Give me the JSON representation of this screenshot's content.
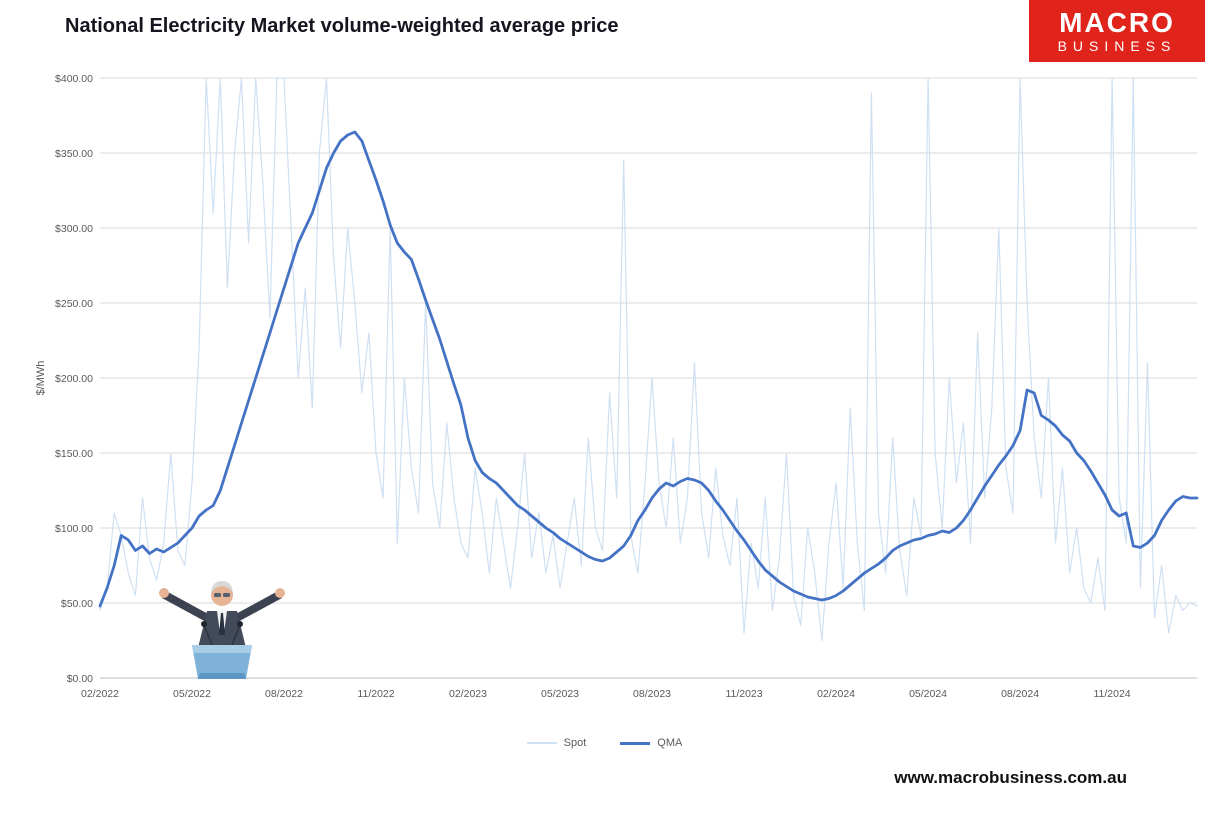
{
  "title": "National Electricity Market volume-weighted average price",
  "logo": {
    "line1": "MACRO",
    "line2": "BUSINESS",
    "bg_color": "#e0241c",
    "fg_color": "#ffffff"
  },
  "footer_url": "www.macrobusiness.com.au",
  "legend": {
    "spot_label": "Spot",
    "qma_label": "QMA"
  },
  "chart_data": {
    "type": "line",
    "title": "National Electricity Market volume-weighted average price",
    "xlabel": "",
    "ylabel": "$/MWh",
    "ylim": [
      0,
      400
    ],
    "ytick_step": 50,
    "ytick_labels": [
      "$0.00",
      "$50.00",
      "$100.00",
      "$150.00",
      "$200.00",
      "$250.00",
      "$300.00",
      "$350.00",
      "$400.00"
    ],
    "xtick_labels": [
      "02/2022",
      "05/2022",
      "08/2022",
      "11/2022",
      "02/2023",
      "05/2023",
      "08/2023",
      "11/2023",
      "02/2024",
      "05/2024",
      "08/2024",
      "11/2024"
    ],
    "xtick_indices": [
      0,
      13,
      26,
      39,
      52,
      65,
      78,
      91,
      104,
      117,
      130,
      143
    ],
    "n_points": 156,
    "grid": true,
    "legend_position": "bottom",
    "colors": {
      "grid": "#d9d9d9",
      "axis_text": "#595959",
      "spot": "#cfe0f2",
      "qma": "#4472c4"
    },
    "series": [
      {
        "name": "Spot",
        "color": "#cfe0f2",
        "width": 1.2,
        "values": [
          45,
          60,
          110,
          95,
          70,
          55,
          120,
          80,
          65,
          90,
          150,
          85,
          75,
          130,
          220,
          400,
          310,
          400,
          260,
          350,
          400,
          290,
          400,
          330,
          240,
          400,
          400,
          300,
          200,
          260,
          180,
          350,
          400,
          280,
          220,
          300,
          250,
          190,
          230,
          150,
          120,
          300,
          90,
          200,
          140,
          110,
          250,
          130,
          100,
          170,
          120,
          90,
          80,
          140,
          110,
          70,
          120,
          90,
          60,
          100,
          150,
          80,
          110,
          70,
          95,
          60,
          90,
          120,
          75,
          160,
          100,
          85,
          190,
          120,
          345,
          95,
          70,
          130,
          200,
          130,
          100,
          160,
          90,
          120,
          210,
          110,
          80,
          140,
          95,
          75,
          120,
          30,
          90,
          60,
          120,
          45,
          80,
          150,
          55,
          35,
          100,
          70,
          25,
          90,
          130,
          60,
          180,
          90,
          45,
          390,
          110,
          70,
          160,
          85,
          55,
          120,
          95,
          400,
          150,
          100,
          200,
          130,
          170,
          90,
          230,
          120,
          180,
          300,
          140,
          110,
          400,
          250,
          160,
          120,
          200,
          90,
          140,
          70,
          100,
          60,
          50,
          80,
          45,
          400,
          120,
          90,
          400,
          60,
          210,
          40,
          75,
          30,
          55,
          45,
          50,
          48
        ]
      },
      {
        "name": "QMA",
        "color": "#4472c4",
        "width": 2.8,
        "values": [
          48,
          60,
          75,
          95,
          92,
          85,
          88,
          83,
          86,
          84,
          87,
          90,
          95,
          100,
          108,
          112,
          115,
          125,
          140,
          155,
          170,
          185,
          200,
          215,
          230,
          245,
          260,
          275,
          290,
          300,
          310,
          325,
          340,
          350,
          358,
          362,
          364,
          358,
          345,
          332,
          318,
          302,
          290,
          284,
          279,
          266,
          252,
          239,
          226,
          211,
          196,
          182,
          160,
          145,
          137,
          133,
          130,
          125,
          120,
          115,
          112,
          108,
          104,
          100,
          97,
          93,
          90,
          87,
          84,
          81,
          79,
          78,
          80,
          84,
          88,
          95,
          105,
          112,
          120,
          126,
          130,
          128,
          131,
          133,
          132,
          130,
          125,
          118,
          112,
          105,
          98,
          92,
          85,
          78,
          72,
          68,
          64,
          61,
          58,
          56,
          54,
          53,
          52,
          53,
          55,
          58,
          62,
          66,
          70,
          73,
          76,
          80,
          85,
          88,
          90,
          92,
          93,
          95,
          96,
          98,
          97,
          100,
          105,
          112,
          120,
          128,
          135,
          142,
          148,
          155,
          165,
          192,
          190,
          175,
          172,
          168,
          162,
          158,
          150,
          145,
          138,
          130,
          122,
          112,
          108,
          110,
          88,
          87,
          90,
          95,
          105,
          112,
          118,
          121,
          120,
          120
        ]
      }
    ]
  }
}
